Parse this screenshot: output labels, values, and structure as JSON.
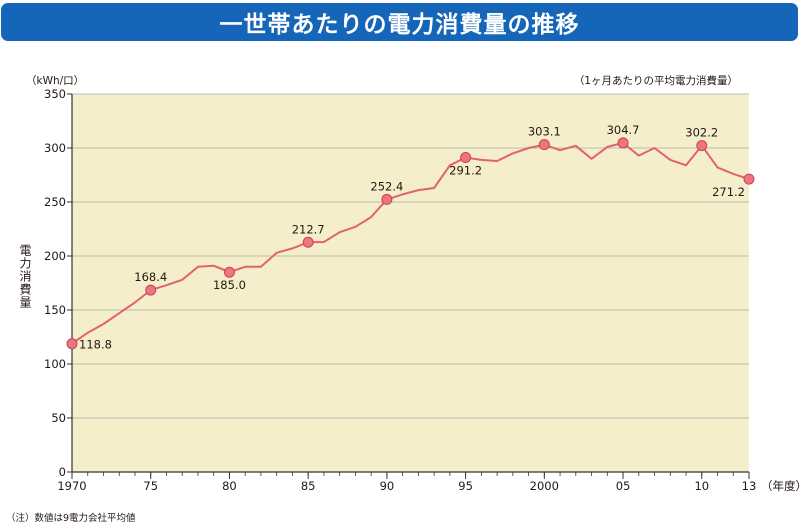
{
  "title": "一世帯あたりの電力消費量の推移",
  "unit_label": "（kWh/口）",
  "subtitle": "（1ヶ月あたりの平均電力消費量）",
  "note": "（注）数値は9電力会社平均値",
  "colors": {
    "title_bg": "#1565b8",
    "plot_bg": "#f5eecb",
    "line": "#e2626c",
    "marker": "#ec7580",
    "grid": "#aaaaaa",
    "axis": "#333333"
  },
  "chart_data": {
    "type": "line",
    "title": "一世帯あたりの電力消費量の推移",
    "subtitle": "（1ヶ月あたりの平均電力消費量）",
    "ylabel": "電力消費量",
    "yunit": "（kWh/口）",
    "xunit": "（年度）",
    "ylim": [
      0,
      350
    ],
    "yticks": [
      0,
      50,
      100,
      150,
      200,
      250,
      300,
      350
    ],
    "xlim": [
      1970,
      2013
    ],
    "xticks": [
      {
        "year": 1970,
        "label": "1970"
      },
      {
        "year": 1975,
        "label": "75"
      },
      {
        "year": 1980,
        "label": "80"
      },
      {
        "year": 1985,
        "label": "85"
      },
      {
        "year": 1990,
        "label": "90"
      },
      {
        "year": 1995,
        "label": "95"
      },
      {
        "year": 2000,
        "label": "2000"
      },
      {
        "year": 2005,
        "label": "05"
      },
      {
        "year": 2010,
        "label": "10"
      },
      {
        "year": 2013,
        "label": "13"
      }
    ],
    "grid": "horizontal",
    "series": [
      {
        "x": [
          1970,
          1971,
          1972,
          1973,
          1974,
          1975,
          1976,
          1977,
          1978,
          1979,
          1980,
          1981,
          1982,
          1983,
          1984,
          1985,
          1986,
          1987,
          1988,
          1989,
          1990,
          1991,
          1992,
          1993,
          1994,
          1995,
          1996,
          1997,
          1998,
          1999,
          2000,
          2001,
          2002,
          2003,
          2004,
          2005,
          2006,
          2007,
          2008,
          2009,
          2010,
          2011,
          2012,
          2013
        ],
        "values": [
          118.8,
          129,
          137,
          147,
          157,
          168.4,
          173,
          178,
          190,
          191,
          185.0,
          190,
          190,
          203,
          207,
          212.7,
          213,
          222,
          227,
          236,
          252.4,
          257,
          261,
          263,
          284,
          291.2,
          289,
          288,
          295,
          300,
          303.1,
          298,
          302,
          290,
          301,
          304.7,
          293,
          300,
          289,
          284,
          302.2,
          282,
          276,
          271.2
        ]
      }
    ],
    "highlighted": [
      {
        "year": 1970,
        "value": 118.8,
        "label": "118.8",
        "pos": "right"
      },
      {
        "year": 1975,
        "value": 168.4,
        "label": "168.4",
        "pos": "above"
      },
      {
        "year": 1980,
        "value": 185.0,
        "label": "185.0",
        "pos": "below"
      },
      {
        "year": 1985,
        "value": 212.7,
        "label": "212.7",
        "pos": "above"
      },
      {
        "year": 1990,
        "value": 252.4,
        "label": "252.4",
        "pos": "above"
      },
      {
        "year": 1995,
        "value": 291.2,
        "label": "291.2",
        "pos": "below"
      },
      {
        "year": 2000,
        "value": 303.1,
        "label": "303.1",
        "pos": "above"
      },
      {
        "year": 2005,
        "value": 304.7,
        "label": "304.7",
        "pos": "above"
      },
      {
        "year": 2010,
        "value": 302.2,
        "label": "302.2",
        "pos": "above"
      },
      {
        "year": 2013,
        "value": 271.2,
        "label": "271.2",
        "pos": "below-left"
      }
    ]
  }
}
